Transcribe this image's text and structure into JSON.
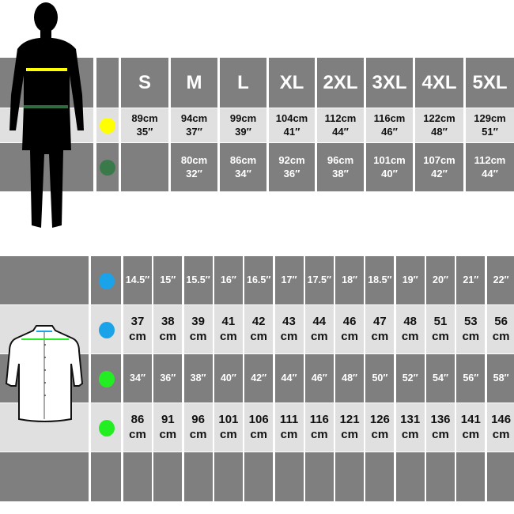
{
  "body_chart": {
    "sizes": [
      "S",
      "M",
      "L",
      "XL",
      "2XL",
      "3XL",
      "4XL",
      "5XL"
    ],
    "rows": [
      {
        "marker_color": "#ffff00",
        "values": [
          [
            "89cm",
            "35″"
          ],
          [
            "94cm",
            "37″"
          ],
          [
            "99cm",
            "39″"
          ],
          [
            "104cm",
            "41″"
          ],
          [
            "112cm",
            "44″"
          ],
          [
            "116cm",
            "46″"
          ],
          [
            "122cm",
            "48″"
          ],
          [
            "129cm",
            "51″"
          ]
        ]
      },
      {
        "marker_color": "#3a7a4a",
        "values": [
          [
            "",
            ""
          ],
          [
            "80cm",
            "32″"
          ],
          [
            "86cm",
            "34″"
          ],
          [
            "92cm",
            "36″"
          ],
          [
            "96cm",
            "38″"
          ],
          [
            "101cm",
            "40″"
          ],
          [
            "107cm",
            "42″"
          ],
          [
            "112cm",
            "44″"
          ]
        ]
      }
    ]
  },
  "shirt_chart": {
    "rows": [
      {
        "marker_color": "#1aa3e8",
        "values": [
          [
            "14.5″"
          ],
          [
            "15″"
          ],
          [
            "15.5″"
          ],
          [
            "16″"
          ],
          [
            "16.5″"
          ],
          [
            "17″"
          ],
          [
            "17.5″"
          ],
          [
            "18″"
          ],
          [
            "18.5″"
          ],
          [
            "19″"
          ],
          [
            "20″"
          ],
          [
            "21″"
          ],
          [
            "22″"
          ]
        ]
      },
      {
        "marker_color": "#1aa3e8",
        "values": [
          [
            "37",
            "cm"
          ],
          [
            "38",
            "cm"
          ],
          [
            "39",
            "cm"
          ],
          [
            "41",
            "cm"
          ],
          [
            "42",
            "cm"
          ],
          [
            "43",
            "cm"
          ],
          [
            "44",
            "cm"
          ],
          [
            "46",
            "cm"
          ],
          [
            "47",
            "cm"
          ],
          [
            "48",
            "cm"
          ],
          [
            "51",
            "cm"
          ],
          [
            "53",
            "cm"
          ],
          [
            "56",
            "cm"
          ]
        ]
      },
      {
        "marker_color": "#22ee22",
        "values": [
          [
            "34″"
          ],
          [
            "36″"
          ],
          [
            "38″"
          ],
          [
            "40″"
          ],
          [
            "42″"
          ],
          [
            "44″"
          ],
          [
            "46″"
          ],
          [
            "48″"
          ],
          [
            "50″"
          ],
          [
            "52″"
          ],
          [
            "54″"
          ],
          [
            "56″"
          ],
          [
            "58″"
          ]
        ]
      },
      {
        "marker_color": "#22ee22",
        "values": [
          [
            "86",
            "cm"
          ],
          [
            "91",
            "cm"
          ],
          [
            "96",
            "cm"
          ],
          [
            "101",
            "cm"
          ],
          [
            "106",
            "cm"
          ],
          [
            "111",
            "cm"
          ],
          [
            "116",
            "cm"
          ],
          [
            "121",
            "cm"
          ],
          [
            "126",
            "cm"
          ],
          [
            "131",
            "cm"
          ],
          [
            "136",
            "cm"
          ],
          [
            "141",
            "cm"
          ],
          [
            "146",
            "cm"
          ]
        ]
      },
      {
        "marker_color": "",
        "values": []
      }
    ]
  }
}
